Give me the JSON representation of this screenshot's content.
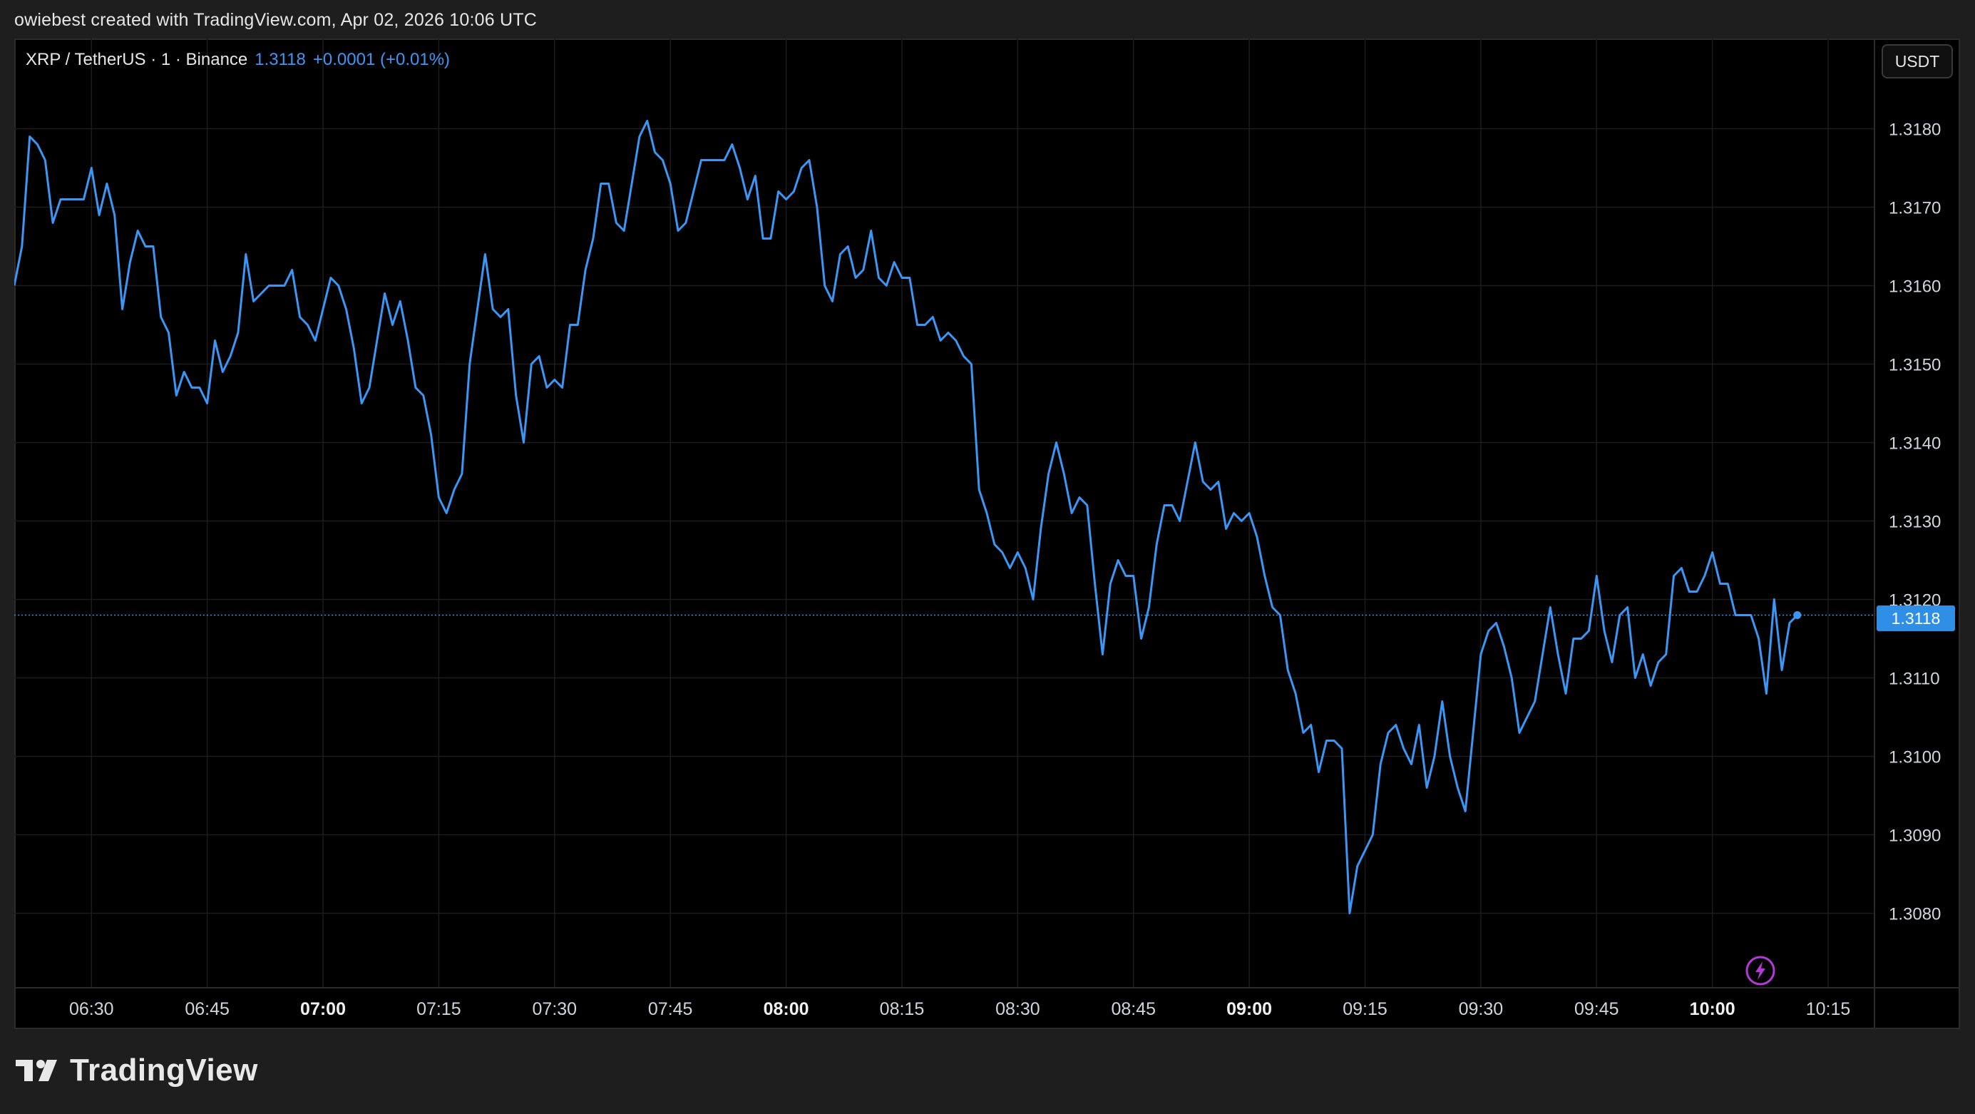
{
  "header": {
    "caption": "owiebest created with TradingView.com, Apr 02, 2026 10:06 UTC"
  },
  "legend": {
    "symbol": "XRP / TetherUS · 1 · Binance",
    "last_price": "1.3118",
    "change": "+0.0001 (+0.01%)"
  },
  "price_scale": {
    "currency": "USDT",
    "current_price_label": "1.3118"
  },
  "brand": {
    "name": "TradingView"
  },
  "colors": {
    "line": "#3b97f6",
    "background": "#000000",
    "grid": "#1c1c1c",
    "axis_text": "#d1d4dc"
  },
  "chart_data": {
    "type": "line",
    "title": "",
    "xlabel": "",
    "ylabel": "",
    "x_start": "06:20",
    "x_step_minutes": 1,
    "x_ticks": [
      {
        "time": "06:30",
        "label": "06:30",
        "bold": false
      },
      {
        "time": "06:45",
        "label": "06:45",
        "bold": false
      },
      {
        "time": "07:00",
        "label": "07:00",
        "bold": true
      },
      {
        "time": "07:15",
        "label": "07:15",
        "bold": false
      },
      {
        "time": "07:30",
        "label": "07:30",
        "bold": false
      },
      {
        "time": "07:45",
        "label": "07:45",
        "bold": false
      },
      {
        "time": "08:00",
        "label": "08:00",
        "bold": true
      },
      {
        "time": "08:15",
        "label": "08:15",
        "bold": false
      },
      {
        "time": "08:30",
        "label": "08:30",
        "bold": false
      },
      {
        "time": "08:45",
        "label": "08:45",
        "bold": false
      },
      {
        "time": "09:00",
        "label": "09:00",
        "bold": true
      },
      {
        "time": "09:15",
        "label": "09:15",
        "bold": false
      },
      {
        "time": "09:30",
        "label": "09:30",
        "bold": false
      },
      {
        "time": "09:45",
        "label": "09:45",
        "bold": false
      },
      {
        "time": "10:00",
        "label": "10:00",
        "bold": true
      },
      {
        "time": "10:15",
        "label": "10:15",
        "bold": false
      }
    ],
    "y_ticks": [
      "1.3080",
      "1.3090",
      "1.3100",
      "1.3110",
      "1.3120",
      "1.3130",
      "1.3140",
      "1.3150",
      "1.3160",
      "1.3170",
      "1.3180"
    ],
    "xlim": [
      "06:20",
      "10:21"
    ],
    "ylim": [
      1.30705,
      1.31915
    ],
    "grid": true,
    "current_price": 1.3118,
    "series": [
      {
        "values": [
          1.316,
          1.3165,
          1.3179,
          1.3178,
          1.3176,
          1.3168,
          1.3171,
          1.3171,
          1.3171,
          1.3171,
          1.3175,
          1.3169,
          1.3173,
          1.3169,
          1.3157,
          1.3163,
          1.3167,
          1.3165,
          1.3165,
          1.3156,
          1.3154,
          1.3146,
          1.3149,
          1.3147,
          1.3147,
          1.3145,
          1.3153,
          1.3149,
          1.3151,
          1.3154,
          1.3164,
          1.3158,
          1.3159,
          1.316,
          1.316,
          1.316,
          1.3162,
          1.3156,
          1.3155,
          1.3153,
          1.3157,
          1.3161,
          1.316,
          1.3157,
          1.3152,
          1.3145,
          1.3147,
          1.3153,
          1.3159,
          1.3155,
          1.3158,
          1.3153,
          1.3147,
          1.3146,
          1.3141,
          1.3133,
          1.3131,
          1.3134,
          1.3136,
          1.315,
          1.3157,
          1.3164,
          1.3157,
          1.3156,
          1.3157,
          1.3146,
          1.314,
          1.315,
          1.3151,
          1.3147,
          1.3148,
          1.3147,
          1.3155,
          1.3155,
          1.3162,
          1.3166,
          1.3173,
          1.3173,
          1.3168,
          1.3167,
          1.3173,
          1.3179,
          1.3181,
          1.3177,
          1.3176,
          1.3173,
          1.3167,
          1.3168,
          1.3172,
          1.3176,
          1.3176,
          1.3176,
          1.3176,
          1.3178,
          1.3175,
          1.3171,
          1.3174,
          1.3166,
          1.3166,
          1.3172,
          1.3171,
          1.3172,
          1.3175,
          1.3176,
          1.317,
          1.316,
          1.3158,
          1.3164,
          1.3165,
          1.3161,
          1.3162,
          1.3167,
          1.3161,
          1.316,
          1.3163,
          1.3161,
          1.3161,
          1.3155,
          1.3155,
          1.3156,
          1.3153,
          1.3154,
          1.3153,
          1.3151,
          1.315,
          1.3134,
          1.3131,
          1.3127,
          1.3126,
          1.3124,
          1.3126,
          1.3124,
          1.312,
          1.3129,
          1.3136,
          1.314,
          1.3136,
          1.3131,
          1.3133,
          1.3132,
          1.3122,
          1.3113,
          1.3122,
          1.3125,
          1.3123,
          1.3123,
          1.3115,
          1.3119,
          1.3127,
          1.3132,
          1.3132,
          1.313,
          1.3135,
          1.314,
          1.3135,
          1.3134,
          1.3135,
          1.3129,
          1.3131,
          1.313,
          1.3131,
          1.3128,
          1.3123,
          1.3119,
          1.3118,
          1.3111,
          1.3108,
          1.3103,
          1.3104,
          1.3098,
          1.3102,
          1.3102,
          1.3101,
          1.308,
          1.3086,
          1.3088,
          1.309,
          1.3099,
          1.3103,
          1.3104,
          1.3101,
          1.3099,
          1.3104,
          1.3096,
          1.31,
          1.3107,
          1.31,
          1.3096,
          1.3093,
          1.3103,
          1.3113,
          1.3116,
          1.3117,
          1.3114,
          1.311,
          1.3103,
          1.3105,
          1.3107,
          1.3113,
          1.3119,
          1.3113,
          1.3108,
          1.3115,
          1.3115,
          1.3116,
          1.3123,
          1.3116,
          1.3112,
          1.3118,
          1.3119,
          1.311,
          1.3113,
          1.3109,
          1.3112,
          1.3113,
          1.3123,
          1.3124,
          1.3121,
          1.3121,
          1.3123,
          1.3126,
          1.3122,
          1.3122,
          1.3118,
          1.3118,
          1.3118,
          1.3115,
          1.3108,
          1.312,
          1.3111,
          1.3117,
          1.3118
        ]
      }
    ]
  }
}
